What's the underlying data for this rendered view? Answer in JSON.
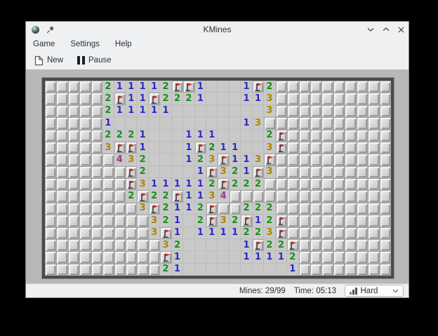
{
  "window": {
    "title": "KMines"
  },
  "menubar": {
    "items": [
      {
        "label": "Game"
      },
      {
        "label": "Settings"
      },
      {
        "label": "Help"
      }
    ]
  },
  "toolbar": {
    "buttons": [
      {
        "label": "New",
        "icon": "new-document-icon"
      },
      {
        "label": "Pause",
        "icon": "pause-icon"
      }
    ]
  },
  "statusbar": {
    "mines_label": "Mines: 29/99",
    "time_label": "Time: 05:13",
    "difficulty": {
      "value": "Hard",
      "icon": "difficulty-bars-icon"
    }
  },
  "board": {
    "cols": 30,
    "rows_count": 16,
    "legend": "T=unrevealed tile, F=flagged tile, .=revealed empty, 1-4=revealed number",
    "rows": [
      "TTTTT211112FF1...1F2TTTTTTTTTT",
      "TTTTT2F11F2221...113TTTTTTTTTT",
      "TTTTT211111........3TTTTTTTTTT",
      "TTTTT1...........13TTTTTTTTTTT",
      "TTTTT2221...111....2FTTTTTTTTT",
      "TTTTT3FF1...1F211..3FTTTTTTTTT",
      "TTTTTT432...123F113FTTTTTTTTTT",
      "TTTTTTTF2....1F321F3TTTTTTTTTT",
      "TTTTTTTF3111112F222TTTTTTTTTTT",
      "TTTTTTT2F22F1134TTTTTTTTTTTTTT",
      "TTTTTTTT3F2112FTT222TTTTTTTTTT",
      "TTTTTTTTT321.2F32F12FTTTTTTTTT",
      "TTTTTTTTT3F1.1111223FTTTTTTTTT",
      "TTTTTTTTTT32.....1F22FTTTTTTTT",
      "TTTTTTTTTTF1.....11112TTTTTTTT",
      "TTTTTTTTTT21.........1TTTTTTTT"
    ],
    "colors": {
      "1": "#2a2ac8",
      "2": "#169116",
      "3": "#ab8600",
      "4": "#8f3f8f",
      "flag": "#d32a2a",
      "flag_pole": "#3c3434"
    }
  }
}
